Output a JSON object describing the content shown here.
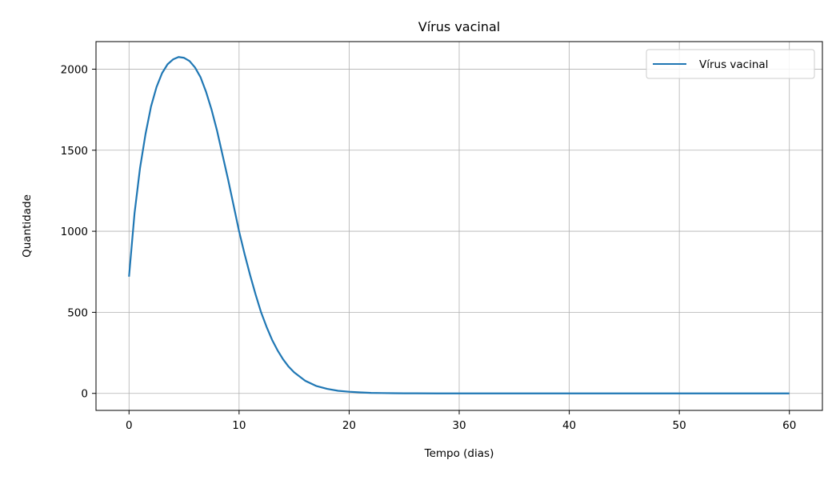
{
  "chart_data": {
    "type": "line",
    "title": "Vírus vacinal",
    "xlabel": "Tempo (dias)",
    "ylabel": "Quantidade",
    "xlim": [
      -3,
      63
    ],
    "ylim": [
      -105,
      2170
    ],
    "xticks": [
      0,
      10,
      20,
      30,
      40,
      50,
      60
    ],
    "yticks": [
      0,
      500,
      1000,
      1500,
      2000
    ],
    "grid": true,
    "legend_position": "top-right",
    "series": [
      {
        "name": "Vírus vacinal",
        "color": "#1f77b4",
        "x": [
          0,
          0.5,
          1,
          1.5,
          2,
          2.5,
          3,
          3.5,
          4,
          4.5,
          5,
          5.5,
          6,
          6.5,
          7,
          7.5,
          8,
          8.5,
          9,
          9.5,
          10,
          10.5,
          11,
          11.5,
          12,
          12.5,
          13,
          13.5,
          14,
          14.5,
          15,
          16,
          17,
          18,
          19,
          20,
          21,
          22,
          23,
          24,
          25,
          26,
          28,
          30,
          35,
          40,
          45,
          50,
          55,
          60
        ],
        "y": [
          720,
          1110,
          1390,
          1600,
          1770,
          1890,
          1975,
          2030,
          2060,
          2075,
          2070,
          2050,
          2010,
          1950,
          1860,
          1750,
          1620,
          1470,
          1320,
          1160,
          1000,
          860,
          730,
          610,
          500,
          410,
          330,
          265,
          210,
          165,
          130,
          78,
          46,
          28,
          16,
          10,
          6,
          3,
          2,
          1,
          0.5,
          0.3,
          0,
          0,
          0,
          0,
          0,
          0,
          0,
          0
        ]
      }
    ]
  }
}
